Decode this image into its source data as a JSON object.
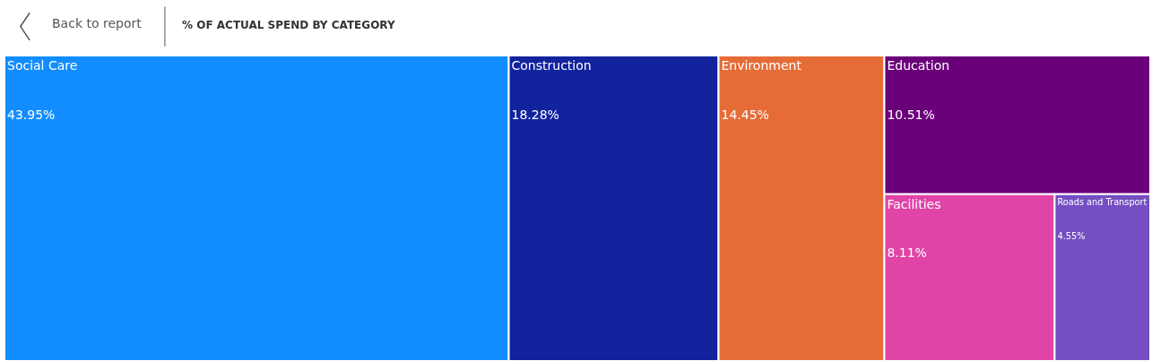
{
  "chart_data": {
    "type": "other",
    "title": "% OF ACTUAL SPEND BY CATEGORY",
    "annotations": [
      "Back to report"
    ],
    "categories": [
      "Social Care",
      "Construction",
      "Environment",
      "Education",
      "Facilities",
      "Roads and Transport"
    ],
    "values": [
      43.95,
      18.28,
      14.45,
      10.51,
      8.11,
      4.55
    ],
    "value_labels": [
      "43.95%",
      "18.28%",
      "14.45%",
      "10.51%",
      "8.11%",
      "4.55%"
    ],
    "colors": [
      "#118dff",
      "#12239e",
      "#e66c37",
      "#6b007b",
      "#e044a7",
      "#744ec2"
    ]
  }
}
